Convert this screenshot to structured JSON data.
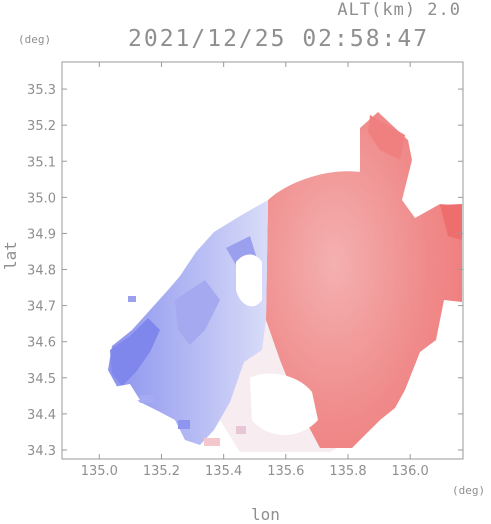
{
  "header": {
    "altitude": "ALT(km) 2.0",
    "timestamp": "2021/12/25 02:58:47"
  },
  "axes": {
    "y_unit": "(deg)",
    "x_unit": "(deg)",
    "y_title": "lat",
    "x_title": "lon",
    "x_ticks": [
      "135.0",
      "135.2",
      "135.4",
      "135.6",
      "135.8",
      "136.0"
    ],
    "y_ticks": [
      "35.3",
      "35.2",
      "35.1",
      "35.0",
      "34.9",
      "34.8",
      "34.7",
      "34.6",
      "34.5",
      "34.4",
      "34.3"
    ],
    "x_range": [
      134.88,
      136.17
    ],
    "y_range": [
      34.275,
      35.375
    ]
  },
  "colors": {
    "approaching": "#7d86f0",
    "receding": "#f07a7a",
    "frame": "#9a9a9a"
  }
}
